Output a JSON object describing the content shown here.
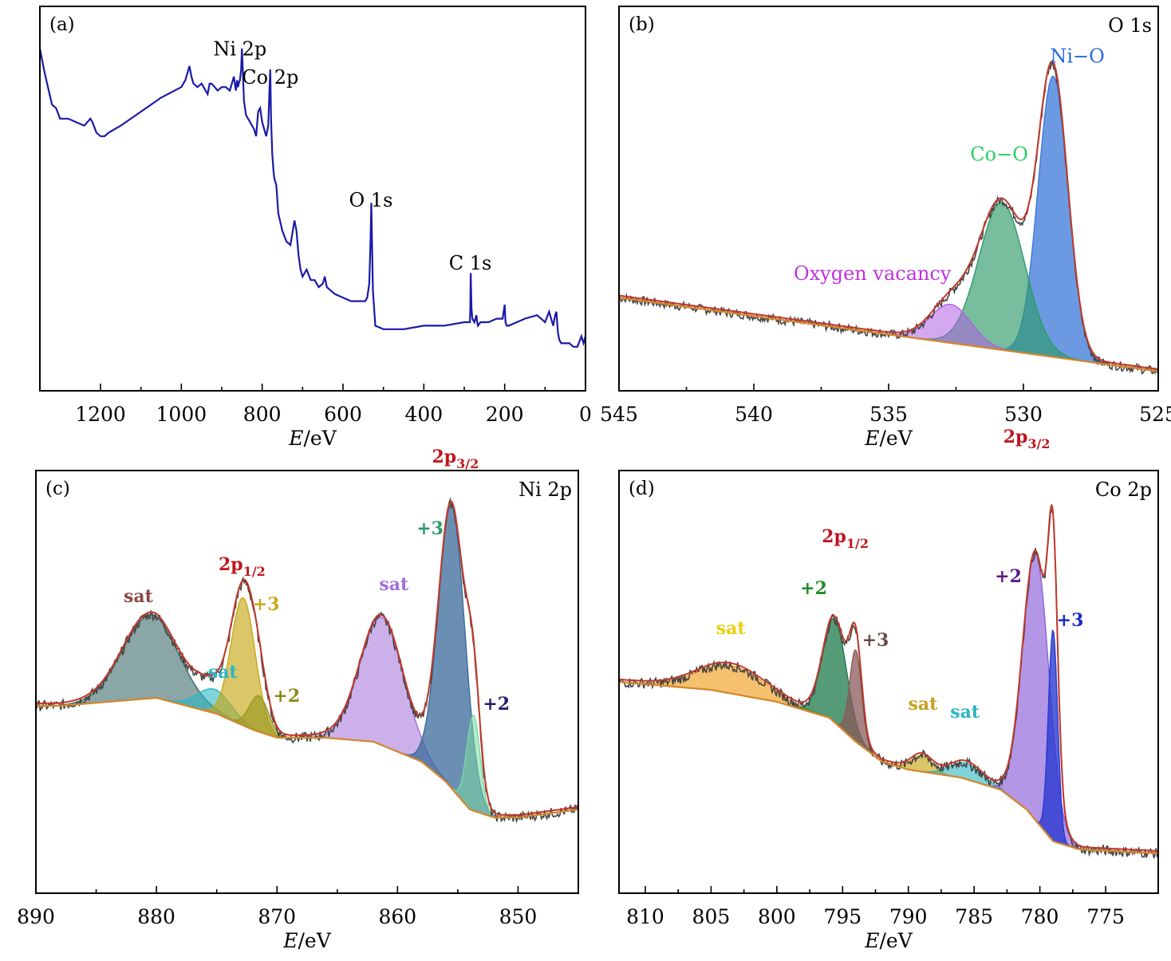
{
  "chart_data": [
    {
      "id": "a",
      "type": "line",
      "panel_label": "(a)",
      "title": "",
      "xlabel_italic": "E",
      "xlabel_rest": "/eV",
      "ylabel": "",
      "xlim": [
        1350,
        0
      ],
      "ylim": [
        0,
        100
      ],
      "xticks": [
        1200,
        1000,
        800,
        600,
        400,
        200,
        0
      ],
      "grid": false,
      "legend": "none",
      "colors": {
        "survey": "#1a1aa8"
      },
      "annotations": [
        {
          "text": "Ni 2p",
          "x": 855,
          "y": 91,
          "color": "#000000"
        },
        {
          "text": "Co 2p",
          "x": 780,
          "y": 83,
          "color": "#000000"
        },
        {
          "text": "O 1s",
          "x": 531,
          "y": 48,
          "color": "#000000"
        },
        {
          "text": "C 1s",
          "x": 285,
          "y": 30,
          "color": "#000000"
        }
      ],
      "series": [
        {
          "x": [
            1350,
            1340,
            1330,
            1320,
            1310,
            1300,
            1280,
            1260,
            1240,
            1225,
            1220,
            1210,
            1200,
            1190,
            1180,
            1150,
            1100,
            1050,
            1000,
            990,
            980,
            975,
            970,
            960,
            950,
            935,
            930,
            925,
            910,
            900,
            890,
            880,
            870,
            865,
            862,
            860,
            858,
            855,
            852,
            850,
            845,
            840,
            830,
            820,
            815,
            810,
            805,
            800,
            795,
            790,
            785,
            782,
            780,
            778,
            775,
            772,
            770,
            765,
            760,
            750,
            740,
            730,
            720,
            715,
            710,
            705,
            700,
            690,
            680,
            670,
            660,
            650,
            645,
            640,
            630,
            620,
            600,
            580,
            560,
            545,
            540,
            535,
            532,
            530,
            528,
            526,
            520,
            500,
            450,
            400,
            350,
            300,
            290,
            286,
            285,
            284,
            282,
            280,
            275,
            270,
            268,
            266,
            260,
            240,
            220,
            205,
            200,
            198,
            195,
            190,
            170,
            150,
            120,
            110,
            100,
            90,
            80,
            75,
            72,
            70,
            68,
            65,
            60,
            50,
            40,
            30,
            20,
            10,
            5,
            0
          ],
          "y": [
            93,
            87,
            82,
            77,
            76,
            73,
            73,
            72,
            71,
            73,
            72,
            69,
            68,
            68,
            69,
            71,
            75,
            79,
            82,
            84,
            88,
            85,
            83,
            82,
            83,
            80,
            83,
            83,
            81,
            82,
            82,
            81,
            85,
            81,
            84,
            82,
            83,
            84,
            87,
            93,
            78,
            74,
            72,
            70,
            68,
            75,
            76,
            72,
            70,
            68,
            71,
            81,
            87,
            73,
            63,
            58,
            56,
            54,
            46,
            41,
            38,
            37,
            44,
            41,
            34,
            30,
            28,
            30,
            27,
            27,
            25,
            26,
            28,
            25,
            24,
            23,
            22,
            21,
            21,
            21,
            22,
            26,
            38,
            49,
            36,
            24,
            14,
            13,
            13,
            14,
            14,
            15,
            15,
            15,
            19,
            29,
            19,
            16,
            15,
            17,
            15,
            14,
            15,
            15,
            16,
            16,
            20,
            15,
            14,
            14,
            15,
            16,
            17,
            16,
            15,
            18,
            14,
            17,
            18,
            15,
            12,
            10,
            9,
            9,
            9,
            8,
            8,
            11,
            9,
            11
          ]
        }
      ]
    },
    {
      "id": "b",
      "type": "area",
      "panel_label": "(b)",
      "title": "O 1s",
      "xlabel_italic": "E",
      "xlabel_rest": "/eV",
      "ylabel": "",
      "xlim": [
        545,
        525
      ],
      "ylim": [
        0,
        100
      ],
      "xticks": [
        545,
        540,
        535,
        530,
        525
      ],
      "grid": false,
      "legend": "none",
      "colors": {
        "envelope": "#c0392b",
        "raw": "#444444",
        "background": "#d4862a",
        "ni_o": "#3a78d8",
        "co_o": "#2e9a6a",
        "vacancy": "#b060e0"
      },
      "background": {
        "x0": 545,
        "y0": 22,
        "x1": 525,
        "y1": 1
      },
      "peaks": [
        {
          "name": "Ni−O",
          "center": 528.9,
          "height": 80,
          "width": 0.55,
          "fill": "#3a78d8",
          "fill_opacity": 0.75,
          "label_x": 528.0,
          "label_y": 89
        },
        {
          "name": "Co−O",
          "center": 530.8,
          "height": 42,
          "width": 0.85,
          "fill": "#2e9a6a",
          "fill_opacity": 0.65,
          "label_x": 530.9,
          "label_y": 61
        },
        {
          "name": "Oxygen vacancy",
          "center": 532.7,
          "height": 11,
          "width": 0.75,
          "fill": "#b060e0",
          "fill_opacity": 0.55,
          "label_x": 535.6,
          "label_y": 27
        }
      ]
    },
    {
      "id": "c",
      "type": "area",
      "panel_label": "(c)",
      "title": "Ni 2p",
      "xlabel_italic": "E",
      "xlabel_rest": "/eV",
      "ylabel": "",
      "xlim": [
        890,
        845
      ],
      "ylim": [
        0,
        100
      ],
      "xticks": [
        890,
        880,
        870,
        860,
        850
      ],
      "grid": false,
      "legend": "none",
      "colors": {
        "envelope": "#c0392b",
        "raw": "#444444",
        "background": "#d4862a"
      },
      "background_points": {
        "x": [
          888,
          880,
          875,
          872,
          870,
          866,
          862,
          858,
          856,
          854,
          852,
          850,
          845
        ],
        "y": [
          43,
          45,
          41,
          37,
          35,
          35,
          34,
          29,
          24,
          17,
          15,
          15,
          17
        ]
      },
      "peaks": [
        {
          "name": "sat",
          "center": 880.5,
          "height": 21,
          "width": 2.3,
          "fill": "#3d6b6b",
          "fill_opacity": 0.6,
          "label": "sat",
          "label_color": "#8b4a4a",
          "label_x": 881.5,
          "label_y": 69
        },
        {
          "name": "sat",
          "center": 875.2,
          "height": 6,
          "width": 1.4,
          "fill": "#2bb5c2",
          "fill_opacity": 0.6,
          "label": "sat",
          "label_color": "#2bb5c2",
          "label_x": 874.5,
          "label_y": 50
        },
        {
          "name": "+3",
          "center": 872.8,
          "height": 32,
          "width": 1.0,
          "fill": "#c8a818",
          "fill_opacity": 0.65,
          "label": "+3",
          "label_color": "#c8a818",
          "label_x": 870.9,
          "label_y": 67
        },
        {
          "name": "+2",
          "center": 871.5,
          "height": 9,
          "width": 0.8,
          "fill": "#9a9a20",
          "fill_opacity": 0.65,
          "label": "+2",
          "label_color": "#8b8b1a",
          "label_x": 869.2,
          "label_y": 44
        },
        {
          "name": "sat",
          "center": 861.3,
          "height": 32,
          "width": 1.8,
          "fill": "#a070d8",
          "fill_opacity": 0.55,
          "label": "sat",
          "label_color": "#a070d8",
          "label_x": 860.3,
          "label_y": 72
        },
        {
          "name": "+3",
          "center": 855.5,
          "height": 71,
          "width": 1.1,
          "fill": "#3a6a9a",
          "fill_opacity": 0.75,
          "label": "+3",
          "label_color": "#2e9a6a",
          "label_x": 857.3,
          "label_y": 86
        },
        {
          "name": "+2",
          "center": 853.7,
          "height": 24,
          "width": 0.55,
          "fill": "#7ad8a0",
          "fill_opacity": 0.55,
          "label": "+2",
          "label_color": "#2a1a6a",
          "label_x": 851.8,
          "label_y": 42
        }
      ],
      "extra_labels": [
        {
          "main": "2p",
          "sub": "1/2",
          "x": 872.9,
          "y": 77,
          "color": "#c0161e"
        },
        {
          "main": "2p",
          "sub": "3/2",
          "x": 855.2,
          "y": 104,
          "color": "#c0161e"
        }
      ]
    },
    {
      "id": "d",
      "type": "area",
      "panel_label": "(d)",
      "title": "Co 2p",
      "xlabel_italic": "E",
      "xlabel_rest": "/eV",
      "ylabel": "",
      "xlim": [
        812,
        771
      ],
      "ylim": [
        0,
        100
      ],
      "xticks": [
        810,
        805,
        800,
        795,
        790,
        785,
        780,
        775
      ],
      "grid": false,
      "legend": "none",
      "colors": {
        "envelope": "#c0392b",
        "raw": "#444444",
        "background": "#d4862a"
      },
      "background_points": {
        "x": [
          812,
          805,
          800,
          796,
          794,
          792,
          790,
          786,
          783,
          781,
          779,
          777,
          771
        ],
        "y": [
          49,
          47,
          44,
          40,
          34,
          29,
          27,
          25,
          22,
          17,
          9,
          7,
          6
        ]
      },
      "peaks": [
        {
          "name": "sat",
          "center": 803.5,
          "height": 7,
          "width": 2.5,
          "fill": "#f0a020",
          "fill_opacity": 0.65,
          "label": "sat",
          "label_color": "#e8d010",
          "label_x": 803.5,
          "label_y": 61
        },
        {
          "name": "+2",
          "center": 795.6,
          "height": 26,
          "width": 0.9,
          "fill": "#1e7a4a",
          "fill_opacity": 0.75,
          "label": "+2",
          "label_color": "#1e8a2a",
          "label_x": 797.2,
          "label_y": 71
        },
        {
          "name": "+3",
          "center": 794.0,
          "height": 23,
          "width": 0.45,
          "fill": "#8a5a5a",
          "fill_opacity": 0.75,
          "label": "+3",
          "label_color": "#6a4a4a",
          "label_x": 792.5,
          "label_y": 58
        },
        {
          "name": "sat",
          "center": 789.0,
          "height": 4,
          "width": 0.8,
          "fill": "#c8a818",
          "fill_opacity": 0.65,
          "label": "sat",
          "label_color": "#c8a020",
          "label_x": 788.9,
          "label_y": 42
        },
        {
          "name": "sat",
          "center": 785.6,
          "height": 4,
          "width": 1.2,
          "fill": "#2bb5c2",
          "fill_opacity": 0.6,
          "label": "sat",
          "label_color": "#2bb5c2",
          "label_x": 785.7,
          "label_y": 40
        },
        {
          "name": "+2",
          "center": 780.3,
          "height": 67,
          "width": 1.0,
          "fill": "#8a60d8",
          "fill_opacity": 0.65,
          "label": "+2",
          "label_color": "#5a1a8a",
          "label_x": 782.4,
          "label_y": 74
        },
        {
          "name": "+3",
          "center": 779.0,
          "height": 53,
          "width": 0.35,
          "fill": "#2a3ad0",
          "fill_opacity": 0.8,
          "label": "+3",
          "label_color": "#1a2ac0",
          "label_x": 777.7,
          "label_y": 63
        }
      ],
      "extra_labels": [
        {
          "main": "2p",
          "sub": "1/2",
          "x": 794.8,
          "y": 84,
          "color": "#c0161e"
        },
        {
          "main": "2p",
          "sub": "3/2",
          "x": 781.0,
          "y": 109,
          "color": "#c0161e"
        }
      ]
    }
  ]
}
